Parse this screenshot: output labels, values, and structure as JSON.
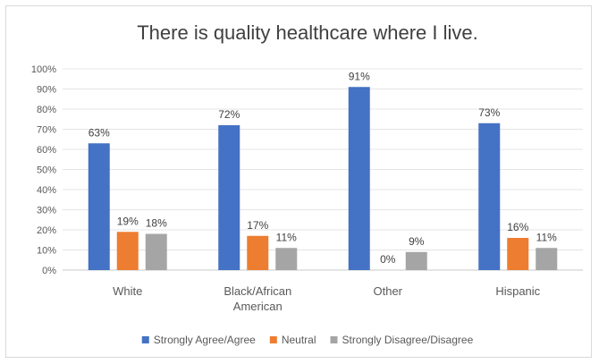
{
  "chart_data": {
    "type": "bar",
    "title": "There is quality healthcare where I live.",
    "categories": [
      [
        "White"
      ],
      [
        "Black/African",
        "American"
      ],
      [
        "Other"
      ],
      [
        "Hispanic"
      ]
    ],
    "series": [
      {
        "name": "Strongly Agree/Agree",
        "color": "#4472c4",
        "values": [
          63,
          72,
          91,
          73
        ]
      },
      {
        "name": "Neutral",
        "color": "#ed7d31",
        "values": [
          19,
          17,
          0,
          16
        ]
      },
      {
        "name": "Strongly Disagree/Disagree",
        "color": "#a5a5a5",
        "values": [
          18,
          11,
          9,
          11
        ]
      }
    ],
    "ylim": [
      0,
      100
    ],
    "yticks": [
      "0%",
      "10%",
      "20%",
      "30%",
      "40%",
      "50%",
      "60%",
      "70%",
      "80%",
      "90%",
      "100%"
    ],
    "value_suffix": "%",
    "grid": true,
    "legend_position": "bottom"
  }
}
